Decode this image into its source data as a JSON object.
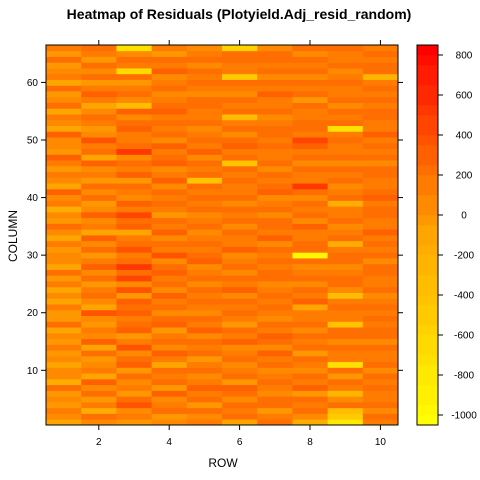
{
  "chart_data": {
    "type": "heatmap",
    "title": "Heatmap of Residuals (Plotyield.Adj_resid_random)",
    "xlabel": "ROW",
    "ylabel": "COLUMN",
    "x_ticks": [
      2,
      4,
      6,
      8,
      10
    ],
    "y_ticks": [
      10,
      20,
      30,
      40,
      50,
      60
    ],
    "colorbar_ticks": [
      800,
      600,
      400,
      200,
      0,
      -200,
      -400,
      -600,
      -800,
      -1000
    ],
    "colorbar_range": [
      -1050,
      850
    ],
    "colorbar_colors": {
      "low": "#FFFF00",
      "mid": "#FFA500",
      "high": "#FF0000"
    },
    "xlim": [
      0.5,
      10.5
    ],
    "ylim": [
      0.5,
      66.5
    ],
    "rows": 10,
    "columns": 66,
    "values": [
      [
        -120,
        80,
        150,
        -40,
        20,
        -60,
        200,
        -150,
        90,
        30,
        -80,
        60,
        -30,
        100,
        -20,
        70,
        -90,
        180,
        -60,
        10,
        140,
        -100,
        50,
        -70,
        120,
        -40,
        200,
        -110,
        30,
        90,
        -50,
        160,
        -130,
        40,
        250,
        -20,
        80,
        -150,
        110,
        60,
        300,
        -90,
        20,
        170,
        -60,
        140,
        260,
        -30,
        90,
        50,
        320,
        -80,
        40,
        150,
        -120,
        180,
        60,
        -40,
        200,
        -70,
        130,
        80,
        -20,
        220,
        -50,
        100
      ],
      [
        60,
        240,
        -180,
        110,
        -60,
        200,
        20,
        300,
        -90,
        170,
        40,
        -50,
        220,
        -130,
        280,
        60,
        150,
        -40,
        90,
        350,
        -70,
        30,
        240,
        120,
        -60,
        180,
        50,
        260,
        100,
        -30,
        200,
        70,
        310,
        -110,
        160,
        40,
        280,
        20,
        -50,
        190,
        90,
        230,
        -40,
        140,
        60,
        300,
        -80,
        200,
        120,
        360,
        80,
        -30,
        170,
        240,
        60,
        -90,
        150,
        280,
        110,
        -50,
        230,
        70,
        200,
        -60,
        140,
        180
      ],
      [
        -20,
        130,
        60,
        380,
        220,
        -40,
        160,
        90,
        240,
        -60,
        320,
        180,
        60,
        410,
        150,
        -30,
        280,
        220,
        120,
        300,
        190,
        260,
        -40,
        350,
        70,
        440,
        180,
        520,
        250,
        140,
        380,
        210,
        120,
        -90,
        330,
        190,
        480,
        140,
        260,
        90,
        160,
        210,
        -20,
        300,
        140,
        190,
        80,
        520,
        230,
        170,
        140,
        260,
        190,
        60,
        300,
        -320,
        80,
        200,
        130,
        -60,
        250,
        -620,
        110,
        180,
        60,
        -700
      ],
      [
        90,
        -60,
        210,
        140,
        60,
        280,
        -30,
        190,
        120,
        250,
        -80,
        170,
        330,
        60,
        210,
        140,
        -40,
        280,
        190,
        90,
        230,
        150,
        300,
        70,
        200,
        120,
        260,
        180,
        90,
        340,
        140,
        210,
        60,
        290,
        130,
        220,
        -30,
        170,
        250,
        110,
        190,
        80,
        310,
        140,
        60,
        260,
        200,
        130,
        280,
        70,
        200,
        150,
        230,
        100,
        270,
        180,
        140,
        60,
        220,
        160,
        90,
        290,
        130,
        210,
        -60,
        170
      ],
      [
        150,
        80,
        240,
        -30,
        190,
        110,
        260,
        140,
        50,
        210,
        170,
        -60,
        240,
        120,
        180,
        60,
        290,
        130,
        210,
        90,
        160,
        250,
        110,
        190,
        70,
        230,
        140,
        80,
        260,
        180,
        120,
        200,
        150,
        90,
        240,
        170,
        60,
        220,
        130,
        190,
        100,
        250,
        -380,
        180,
        120,
        210,
        90,
        280,
        160,
        230,
        130,
        70,
        250,
        170,
        110,
        190,
        230,
        80,
        160,
        240,
        120,
        200,
        60,
        220,
        140,
        90
      ],
      [
        -70,
        190,
        120,
        230,
        60,
        180,
        280,
        -40,
        210,
        140,
        60,
        250,
        170,
        90,
        300,
        130,
        200,
        -50,
        160,
        240,
        110,
        190,
        80,
        270,
        140,
        210,
        60,
        230,
        150,
        90,
        260,
        170,
        120,
        200,
        70,
        240,
        130,
        180,
        50,
        220,
        160,
        100,
        250,
        140,
        210,
        -420,
        180,
        120,
        260,
        190,
        80,
        230,
        150,
        -300,
        200,
        130,
        240,
        90,
        170,
        210,
        -520,
        160,
        120,
        230,
        180,
        -600
      ],
      [
        200,
        110,
        -50,
        180,
        250,
        90,
        160,
        230,
        120,
        60,
        210,
        150,
        280,
        80,
        190,
        260,
        130,
        220,
        70,
        170,
        240,
        110,
        200,
        140,
        60,
        230,
        180,
        100,
        250,
        160,
        210,
        90,
        270,
        140,
        190,
        230,
        80,
        200,
        150,
        60,
        260,
        180,
        120,
        240,
        90,
        210,
        170,
        130,
        250,
        100,
        190,
        230,
        140,
        80,
        220,
        170,
        110,
        260,
        150,
        200,
        90,
        240,
        130,
        180,
        210,
        70
      ],
      [
        -150,
        60,
        230,
        140,
        190,
        -60,
        280,
        120,
        210,
        80,
        170,
        250,
        -40,
        190,
        140,
        230,
        60,
        200,
        160,
        110,
        -80,
        260,
        150,
        190,
        90,
        240,
        130,
        70,
        210,
        -980,
        180,
        230,
        120,
        160,
        260,
        90,
        200,
        140,
        230,
        80,
        190,
        560,
        120,
        170,
        240,
        60,
        210,
        150,
        280,
        420,
        130,
        190,
        230,
        100,
        160,
        210,
        -60,
        240,
        150,
        190,
        90,
        230,
        140,
        180,
        60,
        210
      ],
      [
        -780,
        -520,
        -340,
        210,
        80,
        -280,
        140,
        190,
        -60,
        230,
        -700,
        160,
        120,
        210,
        80,
        190,
        240,
        -420,
        150,
        110,
        200,
        170,
        -300,
        80,
        190,
        220,
        140,
        60,
        180,
        230,
        120,
        -200,
        200,
        150,
        90,
        240,
        170,
        110,
        -180,
        210,
        160,
        80,
        230,
        140,
        190,
        60,
        220,
        150,
        100,
        250,
        170,
        -760,
        210,
        130,
        180,
        90,
        240,
        160,
        110,
        200,
        150,
        80,
        230,
        170,
        120,
        190
      ],
      [
        120,
        190,
        80,
        240,
        160,
        110,
        200,
        150,
        250,
        90,
        210,
        170,
        130,
        230,
        60,
        190,
        250,
        140,
        200,
        110,
        230,
        170,
        80,
        210,
        160,
        120,
        240,
        180,
        90,
        220,
        150,
        200,
        130,
        260,
        170,
        110,
        230,
        190,
        140,
        300,
        210,
        160,
        120,
        230,
        180,
        90,
        240,
        150,
        200,
        130,
        260,
        170,
        110,
        220,
        190,
        140,
        230,
        160,
        210,
        120,
        -260,
        180,
        250,
        130,
        200,
        150
      ]
    ]
  }
}
